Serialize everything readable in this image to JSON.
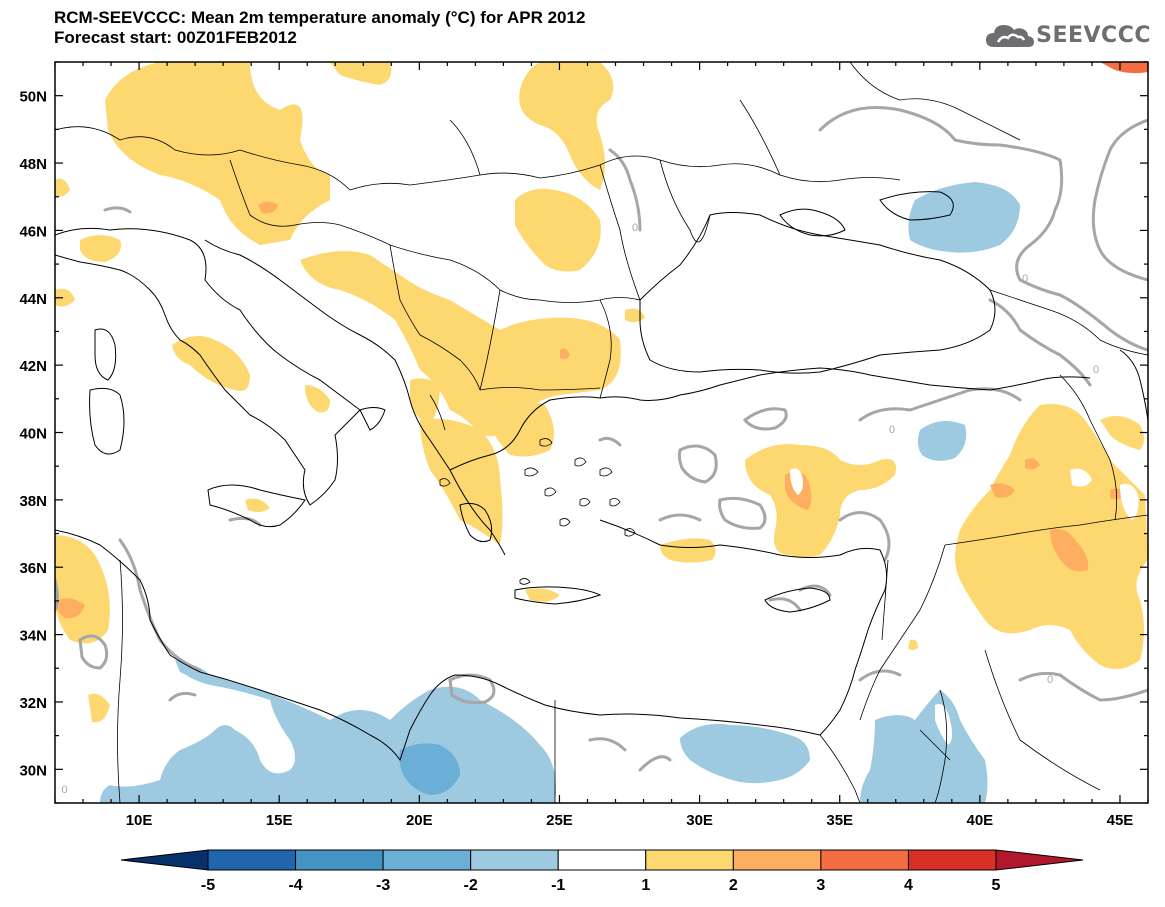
{
  "header": {
    "title_line1": "RCM-SEEVCCC: Mean 2m temperature anomaly (°C) for APR 2012",
    "title_line2": "Forecast start: 00Z01FEB2012"
  },
  "logo": {
    "text": "SEEVCCC",
    "icon": "cloud-icon"
  },
  "map": {
    "lon_range": [
      7,
      46
    ],
    "lat_range": [
      29,
      51
    ],
    "lon_ticks": [
      "10E",
      "15E",
      "20E",
      "25E",
      "30E",
      "35E",
      "40E",
      "45E"
    ],
    "lat_ticks": [
      "50N",
      "48N",
      "46N",
      "44N",
      "42N",
      "40N",
      "38N",
      "36N",
      "34N",
      "32N",
      "30N"
    ],
    "contour_label": "0"
  },
  "colorbar": {
    "labels": [
      "-5",
      "-4",
      "-3",
      "-2",
      "-1",
      "1",
      "2",
      "3",
      "4",
      "5"
    ],
    "colors": [
      "#08306b",
      "#2166ac",
      "#4393c3",
      "#6baed6",
      "#9ecae1",
      "#ffffff",
      "#fdd870",
      "#fdae61",
      "#f46d43",
      "#d73027",
      "#b2182b"
    ]
  },
  "colors": {
    "warm_1": "#fdd870",
    "warm_2": "#fdae61",
    "warm_3": "#f46d43",
    "cool_1": "#9ecae1",
    "cool_2": "#6baed6",
    "zero_contour": "#a6a6a6",
    "border": "#000000"
  }
}
